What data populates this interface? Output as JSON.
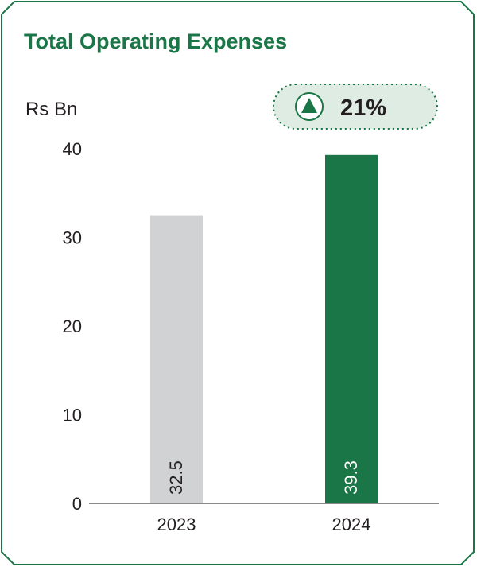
{
  "chart_data": {
    "type": "bar",
    "title": "Total Operating Expenses",
    "ylabel": "Rs Bn",
    "xlabel": "",
    "categories": [
      "2023",
      "2024"
    ],
    "values": [
      32.5,
      39.3
    ],
    "value_labels": [
      "32.5",
      "39.3"
    ],
    "ylim": [
      0,
      40
    ],
    "yticks": [
      0,
      10,
      20,
      30,
      40
    ],
    "ytick_labels": [
      "0",
      "10",
      "20",
      "30",
      "40"
    ],
    "bar_colors": [
      "#d1d2d4",
      "#1a7646"
    ],
    "value_label_colors": [
      "#231f20",
      "#ffffff"
    ],
    "grid": false,
    "change_badge": {
      "direction": "up",
      "icon": "triangle-up-icon",
      "text": "21%"
    }
  },
  "colors": {
    "title": "#1a7646",
    "frame": "#1a7646",
    "badge_fill": "#dfece3",
    "badge_border": "#1a7646",
    "axis": "#8a8a8a",
    "text": "#231f20"
  }
}
